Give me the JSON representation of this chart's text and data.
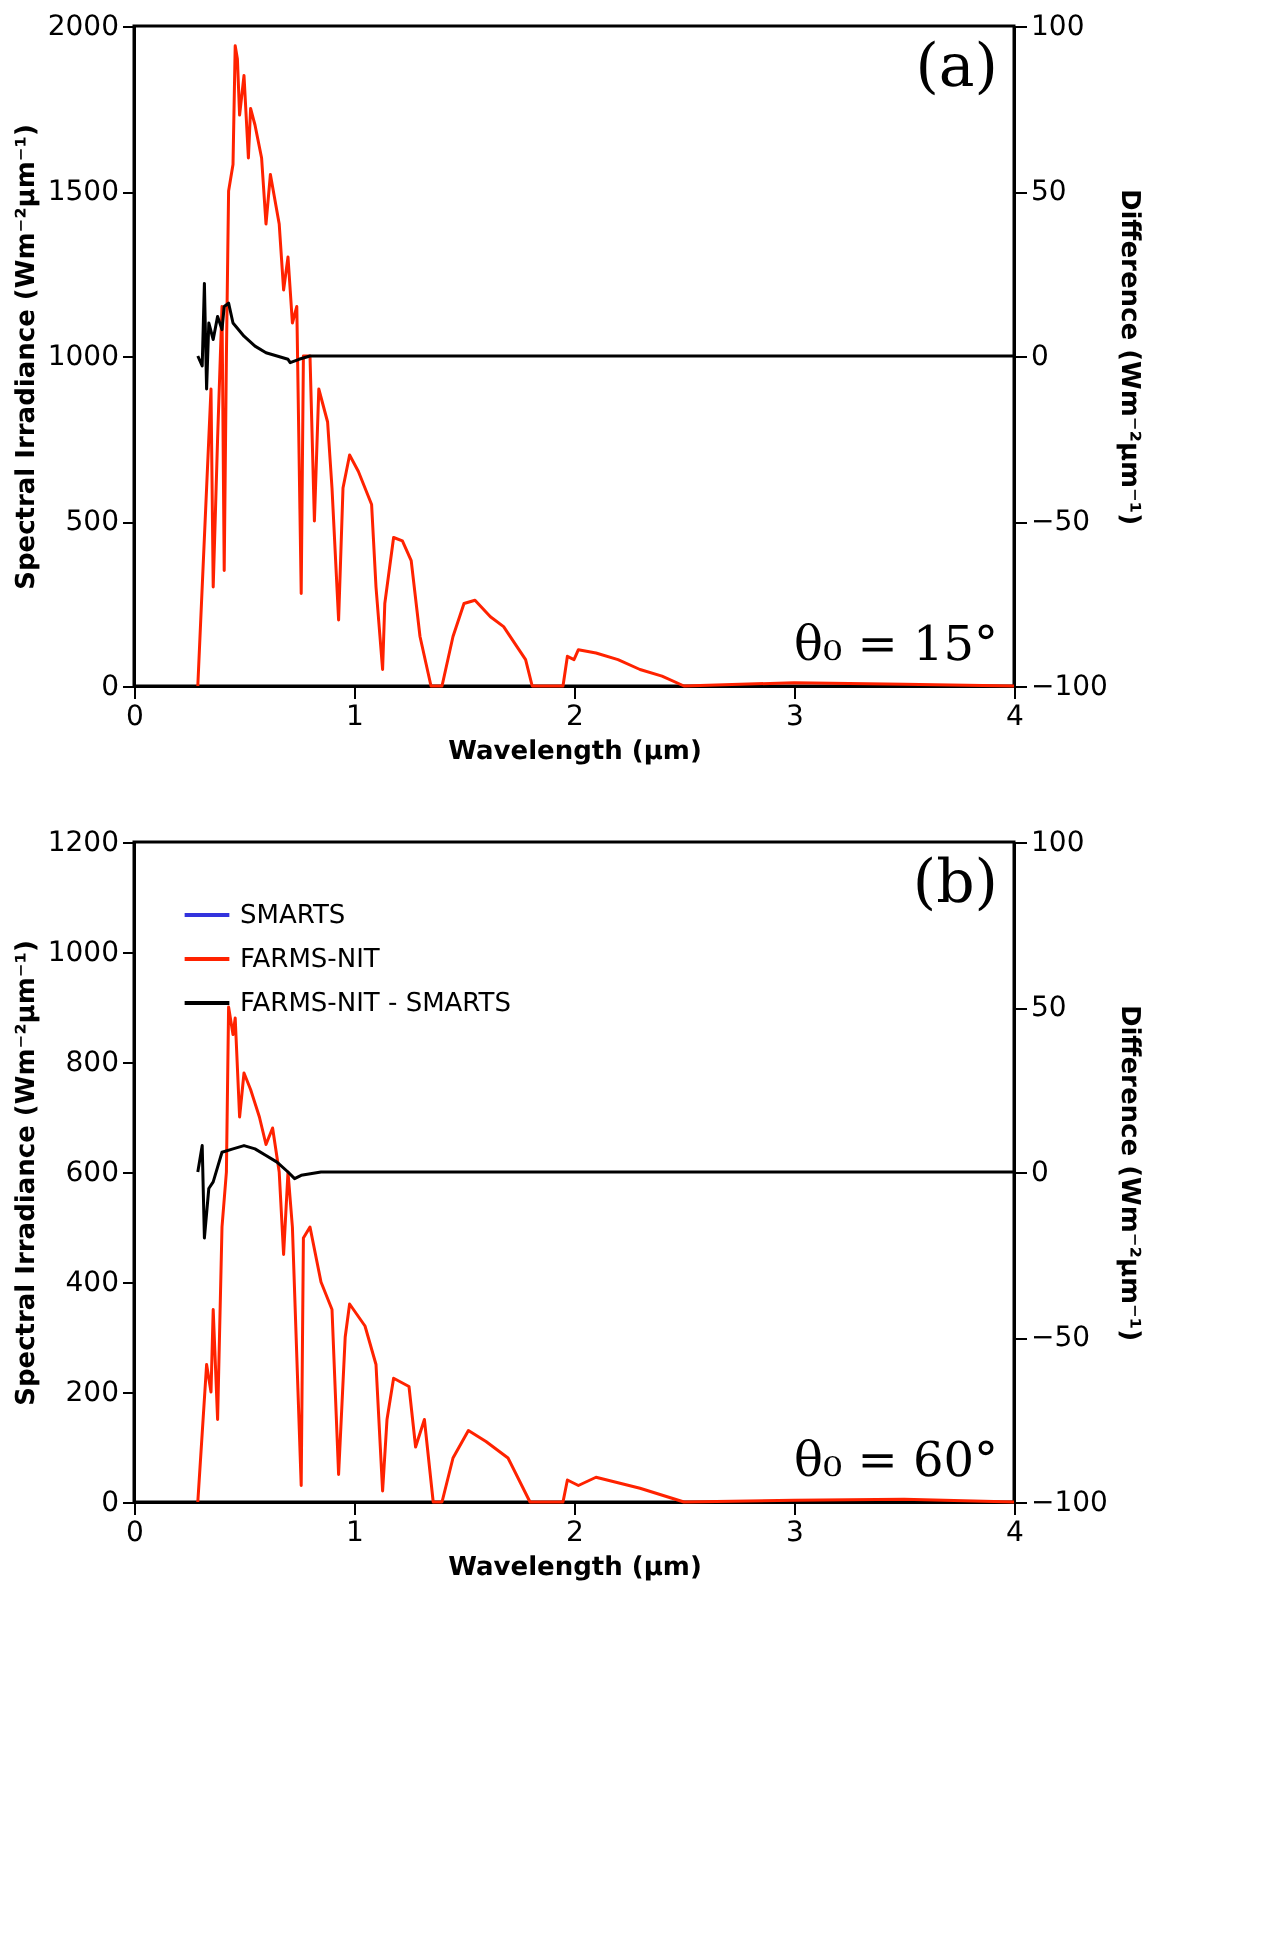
{
  "chart_data": [
    {
      "type": "line",
      "xlabel": "Wavelength (μm)",
      "ylabel": "Spectral Irradiance (Wm⁻²μm⁻¹)",
      "y2label": "Difference (Wm⁻²μm⁻¹)",
      "annotations": [
        "(a)",
        "θ₀ = 15°"
      ],
      "xlim": [
        0,
        4
      ],
      "xticks": [
        0,
        1,
        2,
        3,
        4
      ],
      "ylim": [
        0,
        2000
      ],
      "yticks": [
        0,
        500,
        1000,
        1500,
        2000
      ],
      "y2lim": [
        -100,
        100
      ],
      "y2ticks": [
        -100,
        -50,
        0,
        50,
        100
      ],
      "legend": false,
      "grid": false,
      "series": [
        {
          "color": "#ff2200",
          "x": [
            0.29,
            0.33,
            0.35,
            0.36,
            0.38,
            0.4,
            0.41,
            0.42,
            0.43,
            0.45,
            0.46,
            0.47,
            0.48,
            0.5,
            0.52,
            0.53,
            0.55,
            0.58,
            0.6,
            0.62,
            0.66,
            0.68,
            0.7,
            0.72,
            0.74,
            0.76,
            0.77,
            0.8,
            0.82,
            0.84,
            0.88,
            0.9,
            0.93,
            0.95,
            0.98,
            1.02,
            1.08,
            1.1,
            1.13,
            1.14,
            1.18,
            1.22,
            1.26,
            1.3,
            1.35,
            1.4,
            1.45,
            1.5,
            1.55,
            1.62,
            1.68,
            1.78,
            1.81,
            1.95,
            1.97,
            2.0,
            2.02,
            2.1,
            2.2,
            2.3,
            2.4,
            2.5,
            3.0,
            3.5,
            4.0
          ],
          "values": [
            0,
            600,
            900,
            300,
            750,
            1150,
            350,
            1000,
            1500,
            1580,
            1940,
            1900,
            1730,
            1850,
            1600,
            1750,
            1700,
            1600,
            1400,
            1550,
            1400,
            1200,
            1300,
            1100,
            1150,
            280,
            1000,
            1000,
            500,
            900,
            800,
            600,
            200,
            600,
            700,
            650,
            550,
            300,
            50,
            250,
            450,
            440,
            380,
            150,
            0,
            0,
            150,
            250,
            260,
            210,
            180,
            80,
            0,
            0,
            90,
            80,
            110,
            100,
            80,
            50,
            30,
            0,
            10,
            5,
            0
          ]
        },
        {
          "color": "#000000",
          "axis": "y2",
          "x": [
            0.29,
            0.31,
            0.32,
            0.33,
            0.34,
            0.36,
            0.38,
            0.4,
            0.41,
            0.43,
            0.45,
            0.5,
            0.55,
            0.6,
            0.65,
            0.7,
            0.71,
            0.75,
            0.8,
            4.0
          ],
          "values": [
            0,
            -3,
            22,
            -10,
            10,
            5,
            12,
            8,
            15,
            16,
            10,
            6,
            3,
            1,
            0,
            -1,
            -2,
            -1,
            0,
            0
          ]
        }
      ]
    },
    {
      "type": "line",
      "xlabel": "Wavelength (μm)",
      "ylabel": "Spectral Irradiance (Wm⁻²μm⁻¹)",
      "y2label": "Difference (Wm⁻²μm⁻¹)",
      "annotations": [
        "(b)",
        "θ₀ = 60°"
      ],
      "xlim": [
        0,
        4
      ],
      "xticks": [
        0,
        1,
        2,
        3,
        4
      ],
      "ylim": [
        0,
        1200
      ],
      "yticks": [
        0,
        200,
        400,
        600,
        800,
        1000,
        1200
      ],
      "y2lim": [
        -100,
        100
      ],
      "y2ticks": [
        -100,
        -50,
        0,
        50,
        100
      ],
      "legend": "top left",
      "grid": false,
      "series": [
        {
          "name": "SMARTS",
          "color": "#3333dd"
        },
        {
          "name": "FARMS-NIT",
          "color": "#ff2200",
          "x": [
            0.29,
            0.33,
            0.35,
            0.36,
            0.38,
            0.4,
            0.42,
            0.43,
            0.45,
            0.46,
            0.48,
            0.5,
            0.53,
            0.57,
            0.6,
            0.63,
            0.66,
            0.68,
            0.7,
            0.72,
            0.76,
            0.77,
            0.8,
            0.85,
            0.9,
            0.93,
            0.96,
            0.98,
            1.05,
            1.1,
            1.13,
            1.15,
            1.18,
            1.25,
            1.28,
            1.32,
            1.36,
            1.4,
            1.45,
            1.52,
            1.6,
            1.7,
            1.8,
            1.95,
            1.97,
            2.02,
            2.1,
            2.3,
            2.5,
            3.0,
            3.5,
            4.0
          ],
          "values": [
            0,
            250,
            200,
            350,
            150,
            500,
            600,
            900,
            850,
            880,
            700,
            780,
            750,
            700,
            650,
            680,
            600,
            450,
            600,
            500,
            30,
            480,
            500,
            400,
            350,
            50,
            300,
            360,
            320,
            250,
            20,
            150,
            225,
            210,
            100,
            150,
            0,
            0,
            80,
            130,
            110,
            80,
            0,
            0,
            40,
            30,
            45,
            25,
            0,
            3,
            5,
            0
          ]
        },
        {
          "name": "FARMS-NIT - SMARTS",
          "color": "#000000",
          "axis": "y2",
          "x": [
            0.29,
            0.31,
            0.32,
            0.34,
            0.36,
            0.4,
            0.45,
            0.5,
            0.55,
            0.6,
            0.65,
            0.7,
            0.73,
            0.76,
            0.85,
            4.0
          ],
          "values": [
            0,
            8,
            -20,
            -5,
            -3,
            6,
            7,
            8,
            7,
            5,
            3,
            0,
            -2,
            -1,
            0,
            0
          ]
        }
      ]
    }
  ]
}
